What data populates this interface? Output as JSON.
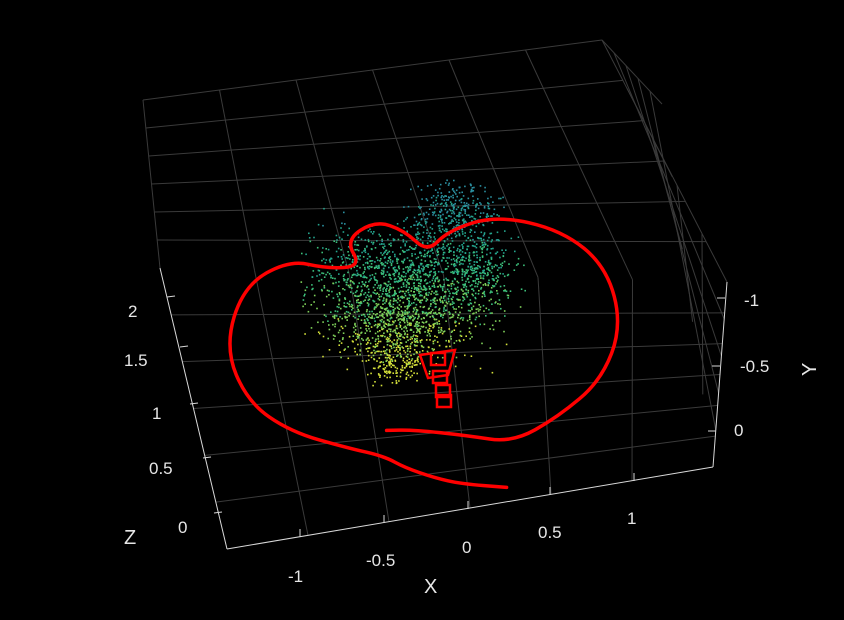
{
  "chart_data": {
    "type": "scatter",
    "title": "",
    "background": "#000000",
    "xlabel": "X",
    "ylabel": "Y",
    "zlabel": "Z",
    "x_ticks": [
      "-1",
      "-0.5",
      "0",
      "0.5",
      "1"
    ],
    "y_ticks": [
      "-1",
      "-0.5",
      "0"
    ],
    "z_ticks": [
      "0",
      "0.5",
      "1",
      "1.5",
      "2"
    ],
    "xlim": [
      -1.3,
      1.3
    ],
    "ylim": [
      -1.1,
      0.1
    ],
    "zlim": [
      -0.1,
      2.2
    ],
    "grid": true,
    "series": [
      {
        "kind": "point-cloud",
        "colormap": [
          "#d4e03a",
          "#7fd15a",
          "#3cbf7a",
          "#24a38c",
          "#2b8fa0"
        ],
        "color_by": "depth"
      },
      {
        "kind": "camera-trajectory",
        "color": "#ff0000",
        "path": [
          [
            -0.35,
            -0.1,
            0.95
          ],
          [
            -0.2,
            -0.1,
            0.9
          ],
          [
            0.1,
            -0.05,
            0.85
          ],
          [
            0.35,
            0.0,
            0.8
          ],
          [
            0.65,
            -0.1,
            0.75
          ],
          [
            0.95,
            -0.25,
            0.7
          ],
          [
            1.15,
            -0.5,
            0.65
          ],
          [
            1.15,
            -0.8,
            0.6
          ],
          [
            0.95,
            -1.0,
            0.6
          ],
          [
            0.6,
            -1.1,
            0.65
          ],
          [
            0.3,
            -1.05,
            0.7
          ],
          [
            0.15,
            -0.95,
            0.75
          ],
          [
            0.05,
            -1.05,
            0.8
          ],
          [
            -0.1,
            -1.1,
            0.85
          ],
          [
            -0.3,
            -1.0,
            0.95
          ],
          [
            -0.25,
            -0.85,
            1.0
          ],
          [
            -0.45,
            -0.85,
            1.05
          ],
          [
            -0.65,
            -0.9,
            1.1
          ],
          [
            -0.95,
            -0.8,
            1.15
          ],
          [
            -1.15,
            -0.55,
            1.1
          ],
          [
            -1.1,
            -0.3,
            1.05
          ],
          [
            -0.9,
            -0.15,
            1.0
          ],
          [
            -0.6,
            -0.05,
            0.95
          ],
          [
            -0.4,
            0.0,
            0.9
          ],
          [
            -0.3,
            0.05,
            0.85
          ],
          [
            -0.15,
            0.1,
            0.8
          ],
          [
            0.0,
            0.15,
            0.8
          ],
          [
            0.25,
            0.2,
            0.8
          ]
        ]
      }
    ]
  }
}
